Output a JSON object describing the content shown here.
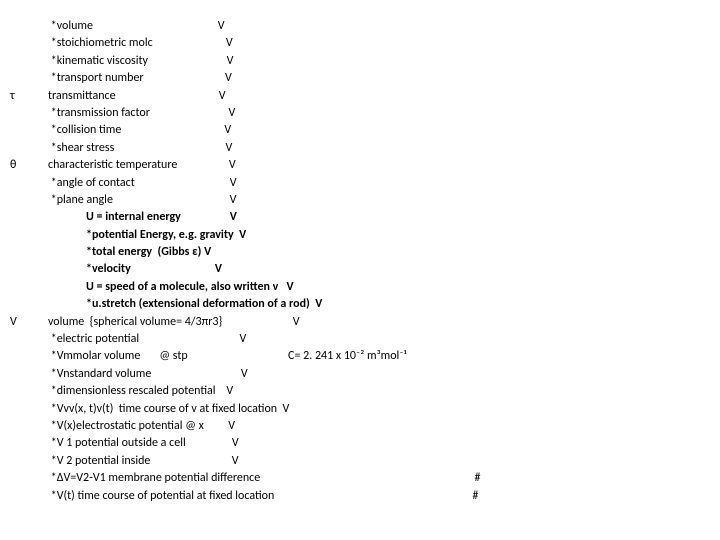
{
  "rows": [
    {
      "c1": "",
      "c2": " *volume                                              V"
    },
    {
      "c1": "",
      "c2": " *stoichiometric molc                           V"
    },
    {
      "c1": "",
      "c2": " *kinematic viscosity                             V"
    },
    {
      "c1": "",
      "c2": " *transport number                              V"
    },
    {
      "c1": "τ",
      "c2": "transmittance                                      V"
    },
    {
      "c1": "",
      "c2": " *transmission factor                             V"
    },
    {
      "c1": "",
      "c2": " *collision time                                      V"
    },
    {
      "c1": "",
      "c2": " *shear stress                                         V"
    },
    {
      "c1": "θ",
      "c2": "characteristic temperature                   V"
    },
    {
      "c1": "",
      "c2": " *angle of contact                                   V"
    },
    {
      "c1": "",
      "c2": " *plane angle                                           V"
    },
    {
      "c1": "",
      "c2": "              U = internal energy                  V",
      "bold": true
    },
    {
      "c1": "",
      "c2": "              *potential Energy, e.g. gravity  V",
      "bold": true
    },
    {
      "c1": "",
      "c2": "              *total energy  (Gibbs ε) V",
      "bold": true
    },
    {
      "c1": "",
      "c2": "              *velocity                               V",
      "bold": true
    },
    {
      "c1": "",
      "c2": "              U = speed of a molecule, also written v   V",
      "bold": true
    },
    {
      "c1": "",
      "c2": "              *u.stretch (extensional deformation of a rod)  V",
      "bold": true
    },
    {
      "c1": "V",
      "c2": "volume  {spherical volume= 4/3πr3}                          V"
    },
    {
      "c1": "",
      "c2": " *electric potential                                     V"
    },
    {
      "c1": "",
      "c2": " *Vmmolar volume       @ stp                                     C= 2. 241 x 10⁻² m³mol⁻¹"
    },
    {
      "c1": "",
      "c2": " *Vnstandard volume                                 V"
    },
    {
      "c1": "",
      "c2": " *dimensionless rescaled potential    V"
    },
    {
      "c1": "",
      "c2": " *Vvv(x, t)v(t)  time course of v at fixed location  V"
    },
    {
      "c1": "",
      "c2": " *V(x)electrostatic potential @ x         V"
    },
    {
      "c1": "",
      "c2": " *V 1 potential outside a cell                 V"
    },
    {
      "c1": "",
      "c2": " *V 2 potential inside                              V"
    },
    {
      "c1": "",
      "c2": " *ΔV=V2-V1 membrane potential difference                                                                               #"
    },
    {
      "c1": "",
      "c2": " *V(t) time course of potential at fixed location                                                                         #"
    }
  ]
}
